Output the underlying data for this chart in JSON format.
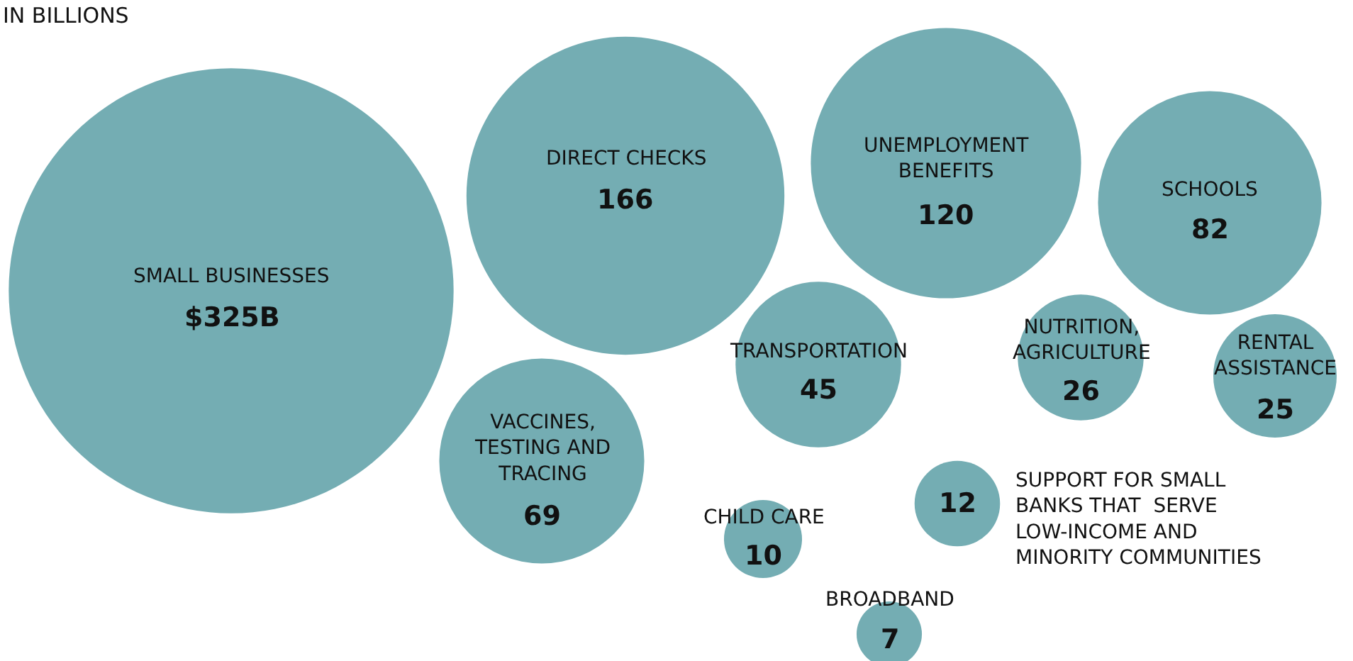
{
  "chart_data": {
    "type": "other",
    "title": "IN BILLIONS",
    "color": "#74adb3",
    "categories": [
      "SMALL BUSINESSES",
      "DIRECT CHECKS",
      "UNEMPLOYMENT\nBENEFITS",
      "SCHOOLS",
      "TRANSPORTATION",
      "VACCINES,\nTESTING AND\nTRACING",
      "NUTRITION,\nAGRICULTURE",
      "RENTAL\nASSISTANCE",
      "CHILD CARE",
      "SUPPORT FOR SMALL\nBANKS THAT  SERVE\nLOW-INCOME AND\nMINORITY COMMUNITIES",
      "BROADBAND"
    ],
    "values": [
      325,
      166,
      120,
      82,
      45,
      69,
      26,
      25,
      10,
      12,
      7
    ],
    "value_labels": [
      "$325B",
      "166",
      "120",
      "82",
      "45",
      "69",
      "26",
      "25",
      "10",
      "12",
      "7"
    ]
  }
}
